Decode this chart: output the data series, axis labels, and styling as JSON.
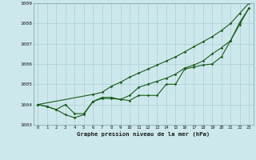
{
  "title": "Graphe pression niveau de la mer (hPa)",
  "background_color": "#cde8ec",
  "grid_color": "#aacdd4",
  "line_color": "#1a5c1a",
  "xlim": [
    -0.5,
    23.5
  ],
  "ylim": [
    1003,
    1009
  ],
  "xticks": [
    0,
    1,
    2,
    3,
    4,
    5,
    6,
    7,
    8,
    9,
    10,
    11,
    12,
    13,
    14,
    15,
    16,
    17,
    18,
    19,
    20,
    21,
    22,
    23
  ],
  "yticks": [
    1003,
    1004,
    1005,
    1006,
    1007,
    1008,
    1009
  ],
  "line1_x": [
    0,
    1,
    2,
    3,
    4,
    5,
    6,
    7,
    8,
    9,
    10,
    11,
    12,
    13,
    14,
    15,
    16,
    17,
    18,
    19,
    20,
    21,
    22,
    23
  ],
  "line1_y": [
    1004.0,
    1003.9,
    1003.75,
    1004.0,
    1003.55,
    1003.55,
    1004.15,
    1004.3,
    1004.3,
    1004.25,
    1004.2,
    1004.45,
    1004.45,
    1004.45,
    1005.0,
    1005.0,
    1005.75,
    1005.85,
    1005.95,
    1006.0,
    1006.35,
    1007.15,
    1007.95,
    1008.75
  ],
  "line2_x": [
    0,
    1,
    2,
    3,
    4,
    5,
    6,
    7,
    8,
    9,
    10,
    11,
    12,
    13,
    14,
    15,
    16,
    17,
    18,
    19,
    20,
    21,
    22,
    23
  ],
  "line2_y": [
    1004.0,
    1003.9,
    1003.75,
    1003.5,
    1003.35,
    1003.5,
    1004.15,
    1004.35,
    1004.35,
    1004.25,
    1004.45,
    1004.85,
    1005.0,
    1005.15,
    1005.3,
    1005.5,
    1005.8,
    1005.95,
    1006.15,
    1006.5,
    1006.8,
    1007.15,
    1008.05,
    1008.75
  ],
  "line3_x": [
    0,
    6,
    7,
    8,
    9,
    10,
    11,
    12,
    13,
    14,
    15,
    16,
    17,
    18,
    19,
    20,
    21,
    22,
    23
  ],
  "line3_y": [
    1004.0,
    1004.5,
    1004.6,
    1004.9,
    1005.1,
    1005.35,
    1005.55,
    1005.75,
    1005.95,
    1006.15,
    1006.35,
    1006.6,
    1006.85,
    1007.1,
    1007.35,
    1007.65,
    1008.0,
    1008.5,
    1009.0
  ]
}
